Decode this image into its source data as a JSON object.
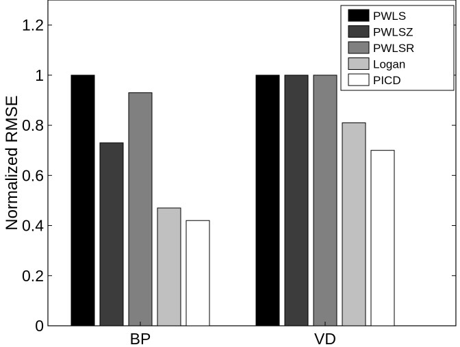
{
  "chart_data": {
    "type": "bar",
    "title": "",
    "xlabel": "",
    "ylabel": "Normalized RMSE",
    "categories": [
      "BP",
      "VD"
    ],
    "ylim": [
      0,
      1.3
    ],
    "yticks": [
      "0",
      "0.2",
      "0.4",
      "0.6",
      "0.8",
      "1",
      "1.2"
    ],
    "grid": false,
    "legend_position": "top-right",
    "series": [
      {
        "name": "PWLS",
        "color": "#000000",
        "values": [
          1.0,
          1.0
        ]
      },
      {
        "name": "PWLSZ",
        "color": "#3c3c3c",
        "values": [
          0.73,
          1.0
        ]
      },
      {
        "name": "PWLSR",
        "color": "#808080",
        "values": [
          0.93,
          1.0
        ]
      },
      {
        "name": "Logan",
        "color": "#c0c0c0",
        "values": [
          0.47,
          0.81
        ]
      },
      {
        "name": "PICD",
        "color": "#ffffff",
        "values": [
          0.42,
          0.7
        ]
      }
    ]
  }
}
